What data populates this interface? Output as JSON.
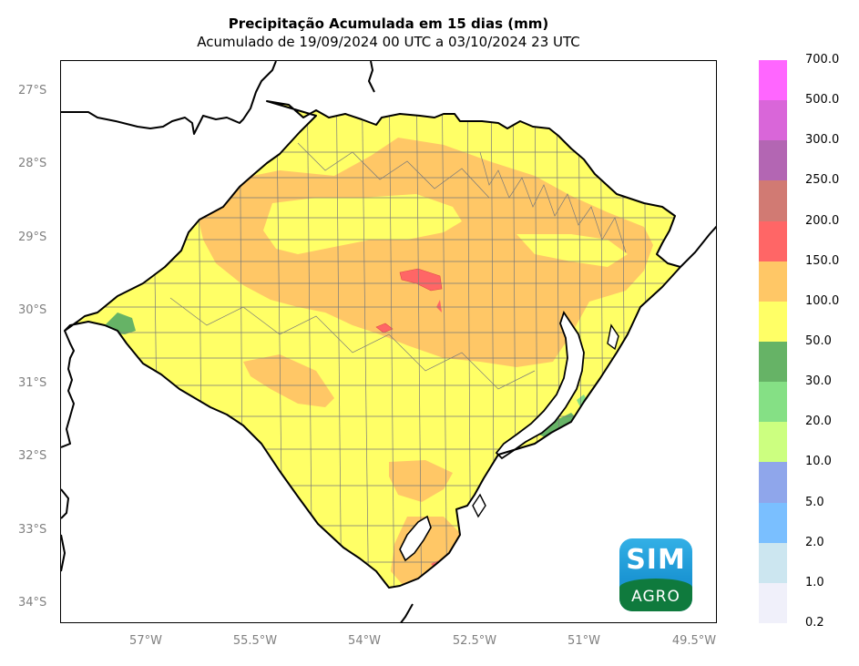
{
  "title": "Precipitação Acumulada em 15 dias (mm)",
  "subtitle": "Acumulado de 19/09/2024 00 UTC a 03/10/2024 23 UTC",
  "latitude_labels": [
    "27°S",
    "28°S",
    "29°S",
    "30°S",
    "31°S",
    "32°S",
    "33°S",
    "34°S"
  ],
  "longitude_labels": [
    "57°W",
    "55.5°W",
    "54°W",
    "52.5°W",
    "51°W",
    "49.5°W"
  ],
  "colorbar": {
    "levels": [
      "700.0",
      "500.0",
      "300.0",
      "250.0",
      "200.0",
      "150.0",
      "100.0",
      "50.0",
      "30.0",
      "20.0",
      "10.0",
      "5.0",
      "2.0",
      "1.0",
      "0.2"
    ],
    "colors": [
      "#ff66ff",
      "#d966d9",
      "#b366b3",
      "#d17a73",
      "#ff6666",
      "#ffc766",
      "#ffff66",
      "#66b366",
      "#85e085",
      "#ccff80",
      "#8fa6eb",
      "#7abfff",
      "#cce6f0",
      "#f0f0fa"
    ]
  },
  "legend_levels_mm": [
    0.2,
    1,
    2,
    5,
    10,
    20,
    30,
    50,
    100,
    150,
    200,
    250,
    300,
    500,
    700
  ],
  "logo": {
    "line1": "SIM",
    "line2": "AGRO"
  }
}
